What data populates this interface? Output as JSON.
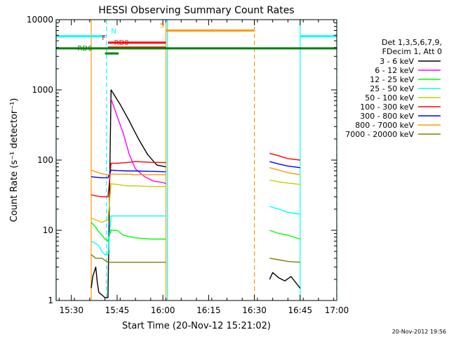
{
  "chart_data": {
    "type": "line",
    "title": "HESSI Observing Summary Count Rates",
    "xlabel": "Start Time (20-Nov-12 15:21:02)",
    "ylabel": "Count Rate (s⁻¹ detector⁻¹)",
    "x_unit": "minutes after 15:21:02",
    "xlim": [
      4,
      96
    ],
    "ylim": [
      1,
      10000
    ],
    "y_scale": "log",
    "x_ticks": [
      {
        "value": 9,
        "label": "15:30"
      },
      {
        "value": 24,
        "label": "15:45"
      },
      {
        "value": 39,
        "label": "16:00"
      },
      {
        "value": 54,
        "label": "16:15"
      },
      {
        "value": 69,
        "label": "16:30"
      },
      {
        "value": 84,
        "label": "16:45"
      },
      {
        "value": 99,
        "label": "17:00"
      }
    ],
    "y_ticks": [
      {
        "value": 1,
        "label": "1"
      },
      {
        "value": 10,
        "label": "10"
      },
      {
        "value": 100,
        "label": "100"
      },
      {
        "value": 1000,
        "label": "1000"
      },
      {
        "value": 10000,
        "label": "10000"
      }
    ],
    "legend_header": [
      "Det 1,3,5,6,7,9,",
      "FDecim 1, Att 0"
    ],
    "legend_position": "right",
    "timestamp": "20-Nov-2012 19:56",
    "series": [
      {
        "name": "3 - 6 keV",
        "color": "#000000",
        "segments": [
          {
            "x": [
              15.5,
              16,
              17,
              17.5,
              18,
              19,
              20,
              21,
              22,
              25,
              28,
              31,
              34,
              37,
              40
            ],
            "y": [
              1.5,
              2.2,
              3,
              1.8,
              1.3,
              1.2,
              1.1,
              1.1,
              1000,
              620,
              360,
              200,
              120,
              85,
              80
            ]
          },
          {
            "x": [
              74,
              75,
              77,
              79,
              81,
              83,
              84
            ],
            "y": [
              2,
              2.5,
              2.1,
              1.9,
              2.2,
              1.7,
              1.5
            ]
          }
        ]
      },
      {
        "name": "6 - 12 keV",
        "color": "#ff00ff",
        "segments": [
          {
            "x": [
              22,
              24,
              26,
              28,
              30,
              33,
              36,
              39,
              40
            ],
            "y": [
              750,
              420,
              240,
              120,
              75,
              58,
              50,
              48,
              46
            ]
          }
        ]
      },
      {
        "name": "12 - 25 keV",
        "color": "#00ff00",
        "segments": [
          {
            "x": [
              15.5,
              17,
              18,
              19,
              20,
              21,
              22,
              24,
              26,
              30,
              35,
              40
            ],
            "y": [
              13,
              11,
              9.5,
              8.5,
              7.5,
              7,
              10,
              10,
              8.5,
              7.8,
              7.5,
              7.5
            ]
          },
          {
            "x": [
              74,
              77,
              80,
              84
            ],
            "y": [
              10,
              9,
              8.5,
              7.5
            ]
          }
        ]
      },
      {
        "name": "25 - 50 keV",
        "color": "#00ffff",
        "segments": [
          {
            "x": [
              15.5,
              17,
              18,
              19,
              20,
              21,
              22,
              24,
              26,
              30,
              35,
              40
            ],
            "y": [
              7,
              6.5,
              6,
              5,
              4.5,
              4.5,
              16,
              16,
              16,
              16,
              16,
              16
            ]
          },
          {
            "x": [
              74,
              77,
              80,
              84
            ],
            "y": [
              22,
              20,
              18,
              17
            ]
          }
        ]
      },
      {
        "name": "50 - 100 keV",
        "color": "#cccc00",
        "segments": [
          {
            "x": [
              15.5,
              17,
              19,
              21,
              22,
              24,
              27,
              30,
              35,
              40
            ],
            "y": [
              15,
              14,
              13,
              14,
              46,
              45,
              43,
              43,
              42,
              42
            ]
          },
          {
            "x": [
              74,
              77,
              80,
              84
            ],
            "y": [
              52,
              49,
              47,
              45
            ]
          }
        ]
      },
      {
        "name": "100 - 300 keV",
        "color": "#ff0000",
        "segments": [
          {
            "x": [
              15.5,
              17,
              19,
              21,
              22,
              24,
              27,
              30,
              35,
              40
            ],
            "y": [
              32,
              31,
              30,
              30,
              90,
              90,
              92,
              95,
              93,
              92
            ]
          },
          {
            "x": [
              74,
              77,
              80,
              84
            ],
            "y": [
              125,
              115,
              105,
              100
            ]
          }
        ]
      },
      {
        "name": "300 - 800 keV",
        "color": "#0000ff",
        "segments": [
          {
            "x": [
              15.5,
              17,
              19,
              21,
              22,
              24,
              27,
              30,
              35,
              40
            ],
            "y": [
              58,
              57,
              56,
              56,
              72,
              71,
              70,
              70,
              69,
              68
            ]
          },
          {
            "x": [
              74,
              77,
              80,
              84
            ],
            "y": [
              95,
              88,
              82,
              78
            ]
          }
        ]
      },
      {
        "name": "800 - 7000 keV",
        "color": "#ff9900",
        "segments": [
          {
            "x": [
              15.5,
              17,
              19,
              21,
              22,
              24,
              27,
              30,
              35,
              40
            ],
            "y": [
              72,
              68,
              64,
              62,
              63,
              63,
              63,
              62,
              62,
              62
            ]
          },
          {
            "x": [
              74,
              77,
              80,
              84
            ],
            "y": [
              78,
              72,
              66,
              62
            ]
          }
        ]
      },
      {
        "name": "7000 - 20000 keV",
        "color": "#808000",
        "segments": [
          {
            "x": [
              15.5,
              17,
              19,
              21,
              22,
              24,
              27,
              30,
              35,
              40
            ],
            "y": [
              4.5,
              4,
              4,
              3.5,
              3.5,
              3.5,
              3.5,
              3.5,
              3.5,
              3.5
            ]
          },
          {
            "x": [
              74,
              77,
              80,
              84
            ],
            "y": [
              4,
              3.8,
              3.6,
              3.5
            ]
          }
        ]
      }
    ],
    "mode_bars": [
      {
        "label": "N",
        "color": "#00ffff",
        "y": 5800,
        "x0": 4,
        "x1": 20,
        "label_x": 22
      },
      {
        "label": "N",
        "color": "#00ffff",
        "y": 5800,
        "x0": 84,
        "x1": 96,
        "label_x": null
      },
      {
        "label": "S",
        "color": "#ff9900",
        "y": 7000,
        "x0": 40,
        "x1": 69,
        "label_x": 38
      },
      {
        "label": "F",
        "color": "#ff0000",
        "y": 4700,
        "x0": 21,
        "x1": 40,
        "label_x": 19
      },
      {
        "label": "RD0",
        "color": "#ff0000",
        "y": 4000,
        "x0": 21,
        "x1": 40,
        "label_x": 23
      },
      {
        "label": "",
        "color": "#008000",
        "y": 3900,
        "x0": 4,
        "x1": 96,
        "label_x": null
      },
      {
        "label": "RD6",
        "color": "#008000",
        "y": 3300,
        "x0": 20,
        "x1": 24.5,
        "label_x": 11
      }
    ],
    "vlines": [
      {
        "x": 4,
        "color": "#00ffff",
        "dash": false
      },
      {
        "x": 20.5,
        "color": "#00ffff",
        "dash": true
      },
      {
        "x": 15.5,
        "color": "#ff9900",
        "dash": false
      },
      {
        "x": 40,
        "color": "#ff9900",
        "dash": false
      },
      {
        "x": 40.5,
        "color": "#00ffff",
        "dash": false
      },
      {
        "x": 69,
        "color": "#ff9900",
        "dash": true
      },
      {
        "x": 84,
        "color": "#00ffff",
        "dash": false
      },
      {
        "x": 96,
        "color": "#00ffff",
        "dash": true
      }
    ]
  }
}
